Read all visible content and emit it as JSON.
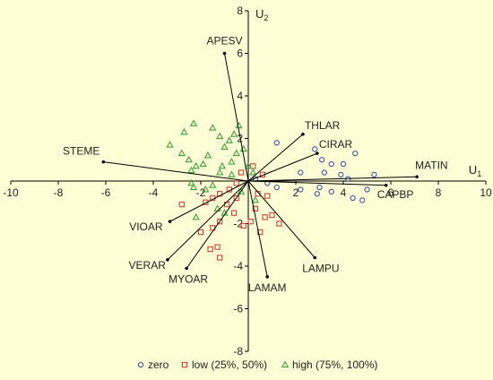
{
  "chart_data": {
    "type": "scatter",
    "title": "",
    "xlim": [
      -10,
      10
    ],
    "ylim": [
      -8,
      8
    ],
    "x_ticks": [
      -10,
      -8,
      -6,
      -4,
      -2,
      2,
      4,
      6,
      8,
      10
    ],
    "y_ticks": [
      -8,
      -6,
      -4,
      -2,
      2,
      4,
      6,
      8
    ],
    "x_axis_name": "U",
    "x_axis_sub": "1",
    "y_axis_name": "U",
    "y_axis_sub": "2",
    "grid": false,
    "legend_placement": "bottom",
    "colors": {
      "zero": "#3a55a8",
      "low": "#d83c3c",
      "high": "#39a33c",
      "axis": "#000000",
      "vector": "#000000"
    },
    "vectors": [
      {
        "name": "APESV",
        "x": -1.0,
        "y": 6.0
      },
      {
        "name": "STEME",
        "x": -6.1,
        "y": 0.9
      },
      {
        "name": "THLAR",
        "x": 2.3,
        "y": 2.2
      },
      {
        "name": "CIRAR",
        "x": 2.9,
        "y": 1.3
      },
      {
        "name": "MATIN",
        "x": 7.1,
        "y": 0.2
      },
      {
        "name": "CAPBP",
        "x": 5.8,
        "y": -0.2
      },
      {
        "name": "LAMPU",
        "x": 2.8,
        "y": -3.6
      },
      {
        "name": "LAMAM",
        "x": 0.8,
        "y": -4.5
      },
      {
        "name": "MYOAR",
        "x": -2.6,
        "y": -4.1
      },
      {
        "name": "VERAR",
        "x": -3.4,
        "y": -3.7
      },
      {
        "name": "VIOAR",
        "x": -3.3,
        "y": -1.9
      }
    ],
    "series": [
      {
        "name": "zero",
        "marker": "circle",
        "points": [
          [
            1.2,
            1.8
          ],
          [
            2.8,
            1.5
          ],
          [
            3.1,
            1.0
          ],
          [
            3.5,
            0.8
          ],
          [
            4.0,
            0.8
          ],
          [
            4.5,
            1.3
          ],
          [
            2.2,
            0.4
          ],
          [
            3.2,
            0.4
          ],
          [
            3.9,
            0.3
          ],
          [
            4.2,
            0.1
          ],
          [
            5.3,
            0.3
          ],
          [
            5.0,
            -0.4
          ],
          [
            3.0,
            -0.3
          ],
          [
            3.5,
            -0.5
          ],
          [
            2.9,
            -0.6
          ],
          [
            4.4,
            -0.8
          ],
          [
            4.8,
            -0.9
          ],
          [
            2.2,
            -0.4
          ],
          [
            1.2,
            -0.3
          ],
          [
            0.8,
            -0.1
          ],
          [
            0.3,
            0.1
          ]
        ]
      },
      {
        "name": "low",
        "marker": "square",
        "points": [
          [
            0.2,
            0.7
          ],
          [
            0.6,
            0.3
          ],
          [
            -0.3,
            0.4
          ],
          [
            -0.5,
            -0.1
          ],
          [
            -0.8,
            -0.4
          ],
          [
            -1.2,
            -0.6
          ],
          [
            -1.5,
            -0.8
          ],
          [
            -0.5,
            -0.8
          ],
          [
            0.4,
            -0.6
          ],
          [
            0.8,
            -0.7
          ],
          [
            0.3,
            -1.3
          ],
          [
            0.7,
            -1.7
          ],
          [
            1.0,
            -1.6
          ],
          [
            0.1,
            -1.9
          ],
          [
            -0.2,
            -2.1
          ],
          [
            -0.6,
            -1.5
          ],
          [
            -0.9,
            -1.1
          ],
          [
            -1.8,
            -1.0
          ],
          [
            -2.8,
            -1.1
          ],
          [
            -1.2,
            -1.9
          ],
          [
            -1.5,
            -2.2
          ],
          [
            -2.0,
            -2.4
          ],
          [
            -1.3,
            -3.1
          ],
          [
            -1.6,
            -3.2
          ],
          [
            -1.2,
            -3.6
          ],
          [
            1.3,
            -2.0
          ],
          [
            0.5,
            -2.4
          ]
        ]
      },
      {
        "name": "high",
        "marker": "triangle",
        "points": [
          [
            -2.3,
            2.7
          ],
          [
            -1.5,
            2.5
          ],
          [
            -2.7,
            2.3
          ],
          [
            -1.2,
            2.1
          ],
          [
            -0.4,
            2.6
          ],
          [
            -0.6,
            2.2
          ],
          [
            -0.8,
            1.9
          ],
          [
            -1.0,
            1.6
          ],
          [
            -3.3,
            1.7
          ],
          [
            -2.8,
            1.3
          ],
          [
            -0.2,
            1.5
          ],
          [
            -0.5,
            1.3
          ],
          [
            -1.7,
            1.2
          ],
          [
            -2.5,
            1.0
          ],
          [
            -1.9,
            0.8
          ],
          [
            -2.2,
            0.7
          ],
          [
            -2.4,
            0.5
          ],
          [
            -0.7,
            0.9
          ],
          [
            -1.1,
            0.7
          ],
          [
            -1.2,
            0.4
          ],
          [
            -0.7,
            0.3
          ],
          [
            0.0,
            0.7
          ],
          [
            0.2,
            0.4
          ],
          [
            -2.4,
            -0.1
          ],
          [
            -2.3,
            -0.3
          ],
          [
            -1.8,
            -0.4
          ],
          [
            -1.5,
            -0.2
          ],
          [
            -1.3,
            -1.3
          ],
          [
            -1.0,
            -1.5
          ],
          [
            -2.2,
            -1.7
          ],
          [
            0.3,
            -0.9
          ],
          [
            -0.3,
            -0.5
          ]
        ]
      }
    ],
    "legend": [
      {
        "series": "zero",
        "label": "zero"
      },
      {
        "series": "low",
        "label": "low (25%, 50%)"
      },
      {
        "series": "high",
        "label": "high (75%, 100%)"
      }
    ]
  }
}
